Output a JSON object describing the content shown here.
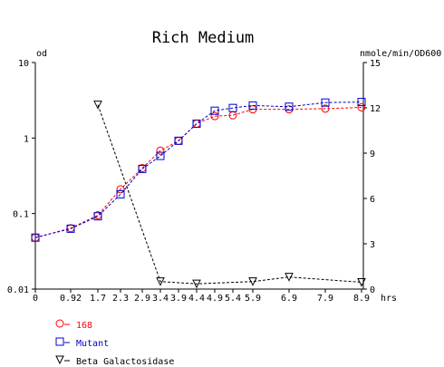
{
  "chart_data": {
    "type": "line",
    "title": "Rich Medium",
    "xlabel": "hrs",
    "ylabel_left": "od",
    "ylabel_right": "nmole/min/OD600",
    "y_left_scale": "log",
    "ylim_left": [
      0.01,
      10
    ],
    "ylim_right": [
      0,
      15
    ],
    "x_tick_labels": [
      "0",
      "0.92",
      "1.7",
      "2.3",
      "2.9",
      "3.4",
      "3.9",
      "4.4",
      "4.9",
      "5.4",
      "5.9",
      "6.9",
      "7.9",
      "8.9"
    ],
    "y_left_tick_labels": [
      "10",
      "1",
      "0.1",
      "0.01"
    ],
    "y_right_tick_labels": [
      "15",
      "12",
      "9",
      "6",
      "3",
      "0"
    ],
    "grid": false,
    "legend_position": "bottom-left",
    "series": [
      {
        "name": "168",
        "axis": "left",
        "marker": "circle",
        "color": "#ff0000",
        "x": [
          0,
          0.92,
          1.7,
          2.3,
          2.9,
          3.4,
          3.9,
          4.4,
          4.9,
          5.4,
          5.9,
          6.9,
          7.9,
          8.9
        ],
        "y": [
          0.048,
          0.064,
          0.095,
          0.21,
          0.4,
          0.68,
          0.92,
          1.55,
          1.95,
          2.0,
          2.4,
          2.4,
          2.45,
          2.55
        ]
      },
      {
        "name": "Mutant",
        "axis": "left",
        "marker": "square",
        "color": "#0000cc",
        "x": [
          0,
          0.92,
          1.7,
          2.3,
          2.9,
          3.4,
          3.9,
          4.4,
          4.9,
          5.4,
          5.9,
          6.9,
          7.9,
          8.9
        ],
        "y": [
          0.048,
          0.063,
          0.092,
          0.18,
          0.39,
          0.58,
          0.92,
          1.55,
          2.3,
          2.5,
          2.7,
          2.6,
          2.95,
          3.0
        ]
      },
      {
        "name": "Beta Galactosidase",
        "axis": "right",
        "marker": "triangle-down",
        "color": "#000000",
        "x": [
          1.7,
          3.4,
          4.4,
          5.9,
          6.9,
          8.9
        ],
        "y": [
          12.2,
          0.5,
          0.35,
          0.5,
          0.8,
          0.45
        ]
      }
    ]
  }
}
